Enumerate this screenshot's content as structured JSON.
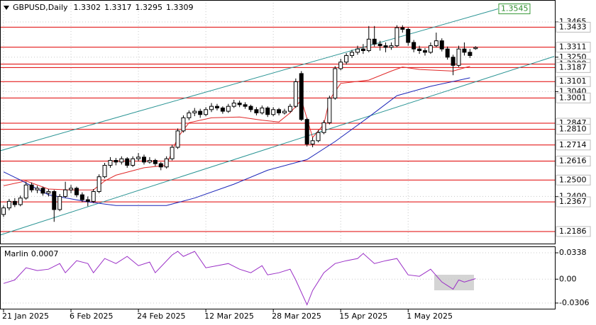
{
  "chart_data": {
    "type": "candlestick",
    "symbol": "GBPUSD,Daily",
    "header_ohlc": [
      1.3302,
      1.3317,
      1.3295,
      1.3309
    ],
    "ylim": [
      1.2108,
      1.3599
    ],
    "yticks": [
      1.3465,
      {
        "value": 1.325,
        "label": "1.3250"
      },
      {
        "value": 1.304,
        "label": "1.3040"
      },
      {
        "value": 1.24,
        "label": "1.2400"
      }
    ],
    "levels": [
      1.3433,
      1.3311,
      1.3208,
      1.3187,
      1.3101,
      1.3001,
      1.2847,
      {
        "value": 1.281,
        "label": "1.2810"
      },
      1.2714,
      1.2616,
      {
        "value": 1.25,
        "label": "1.2500"
      },
      1.2367,
      1.2186
    ],
    "level_color": "#e00000",
    "xticks": [
      {
        "value": 0,
        "label": "21 Jan 2025"
      },
      {
        "value": 12,
        "label": "6 Feb 2025"
      },
      {
        "value": 24,
        "label": "24 Feb 2025"
      },
      {
        "value": 36,
        "label": "12 Mar 2025"
      },
      {
        "value": 48,
        "label": "28 Mar 2025"
      },
      {
        "value": 60,
        "label": "15 Apr 2025"
      },
      {
        "value": 72,
        "label": "1 May 2025"
      }
    ],
    "candles": [
      [
        1.229,
        1.2345,
        1.2275,
        1.233
      ],
      [
        1.233,
        1.2385,
        1.2315,
        1.237
      ],
      [
        1.237,
        1.239,
        1.2335,
        1.235
      ],
      [
        1.235,
        1.2405,
        1.234,
        1.239
      ],
      [
        1.239,
        1.249,
        1.238,
        1.247
      ],
      [
        1.247,
        1.2485,
        1.2425,
        1.244
      ],
      [
        1.244,
        1.2465,
        1.242,
        1.245
      ],
      [
        1.245,
        1.246,
        1.2405,
        1.242
      ],
      [
        1.242,
        1.2445,
        1.24,
        1.243
      ],
      [
        1.243,
        1.244,
        1.2245,
        1.232
      ],
      [
        1.232,
        1.2415,
        1.231,
        1.24
      ],
      [
        1.24,
        1.249,
        1.239,
        1.244
      ],
      [
        1.244,
        1.247,
        1.242,
        1.245
      ],
      [
        1.245,
        1.246,
        1.2395,
        1.241
      ],
      [
        1.241,
        1.2425,
        1.2365,
        1.238
      ],
      [
        1.238,
        1.24,
        1.234,
        1.237
      ],
      [
        1.237,
        1.2445,
        1.236,
        1.243
      ],
      [
        1.243,
        1.2535,
        1.242,
        1.252
      ],
      [
        1.252,
        1.2605,
        1.251,
        1.259
      ],
      [
        1.259,
        1.264,
        1.2575,
        1.262
      ],
      [
        1.262,
        1.2635,
        1.259,
        1.261
      ],
      [
        1.261,
        1.2645,
        1.2595,
        1.263
      ],
      [
        1.263,
        1.264,
        1.2575,
        1.259
      ],
      [
        1.259,
        1.2645,
        1.258,
        1.263
      ],
      [
        1.263,
        1.2665,
        1.2615,
        1.264
      ],
      [
        1.264,
        1.2655,
        1.2595,
        1.261
      ],
      [
        1.261,
        1.264,
        1.26,
        1.262
      ],
      [
        1.262,
        1.263,
        1.2585,
        1.26
      ],
      [
        1.26,
        1.261,
        1.256,
        1.258
      ],
      [
        1.258,
        1.2645,
        1.257,
        1.263
      ],
      [
        1.263,
        1.2715,
        1.262,
        1.27
      ],
      [
        1.27,
        1.2815,
        1.269,
        1.28
      ],
      [
        1.28,
        1.2895,
        1.279,
        1.288
      ],
      [
        1.288,
        1.2925,
        1.2865,
        1.291
      ],
      [
        1.291,
        1.294,
        1.289,
        1.292
      ],
      [
        1.292,
        1.2935,
        1.288,
        1.29
      ],
      [
        1.29,
        1.2945,
        1.289,
        1.293
      ],
      [
        1.293,
        1.297,
        1.2915,
        1.295
      ],
      [
        1.295,
        1.2965,
        1.2925,
        1.294
      ],
      [
        1.294,
        1.295,
        1.2905,
        1.292
      ],
      [
        1.292,
        1.2965,
        1.291,
        1.295
      ],
      [
        1.295,
        1.299,
        1.294,
        1.297
      ],
      [
        1.297,
        1.2985,
        1.2945,
        1.296
      ],
      [
        1.296,
        1.2975,
        1.2935,
        1.295
      ],
      [
        1.295,
        1.296,
        1.2915,
        1.293
      ],
      [
        1.293,
        1.2945,
        1.2895,
        1.291
      ],
      [
        1.291,
        1.2955,
        1.29,
        1.294
      ],
      [
        1.294,
        1.295,
        1.2885,
        1.29
      ],
      [
        1.29,
        1.2945,
        1.289,
        1.293
      ],
      [
        1.293,
        1.294,
        1.2895,
        1.291
      ],
      [
        1.291,
        1.2935,
        1.29,
        1.292
      ],
      [
        1.292,
        1.2965,
        1.291,
        1.295
      ],
      [
        1.295,
        1.312,
        1.294,
        1.31
      ],
      [
        1.315,
        1.3165,
        1.286,
        1.287
      ],
      [
        1.287,
        1.288,
        1.2705,
        1.272
      ],
      [
        1.272,
        1.276,
        1.27,
        1.274
      ],
      [
        1.274,
        1.2805,
        1.273,
        1.279
      ],
      [
        1.279,
        1.2865,
        1.278,
        1.285
      ],
      [
        1.285,
        1.3015,
        1.284,
        1.3
      ],
      [
        1.3,
        1.3195,
        1.299,
        1.318
      ],
      [
        1.318,
        1.324,
        1.317,
        1.322
      ],
      [
        1.322,
        1.3275,
        1.3205,
        1.326
      ],
      [
        1.326,
        1.3295,
        1.3245,
        1.328
      ],
      [
        1.328,
        1.332,
        1.3265,
        1.33
      ],
      [
        1.33,
        1.333,
        1.327,
        1.329
      ],
      [
        1.329,
        1.344,
        1.328,
        1.336
      ],
      [
        1.336,
        1.344,
        1.3315,
        1.333
      ],
      [
        1.333,
        1.335,
        1.329,
        1.332
      ],
      [
        1.332,
        1.334,
        1.328,
        1.331
      ],
      [
        1.331,
        1.334,
        1.3295,
        1.332
      ],
      [
        1.332,
        1.3445,
        1.331,
        1.343
      ],
      [
        1.343,
        1.3445,
        1.34,
        1.342
      ],
      [
        1.342,
        1.343,
        1.332,
        1.334
      ],
      [
        1.334,
        1.3355,
        1.328,
        1.33
      ],
      [
        1.33,
        1.332,
        1.327,
        1.329
      ],
      [
        1.329,
        1.3305,
        1.326,
        1.328
      ],
      [
        1.328,
        1.334,
        1.327,
        1.332
      ],
      [
        1.332,
        1.34,
        1.331,
        1.335
      ],
      [
        1.335,
        1.3365,
        1.3285,
        1.33
      ],
      [
        1.33,
        1.3315,
        1.3235,
        1.325
      ],
      [
        1.325,
        1.3265,
        1.314,
        1.32
      ],
      [
        1.32,
        1.332,
        1.319,
        1.33
      ],
      [
        1.33,
        1.334,
        1.326,
        1.328
      ],
      [
        1.328,
        1.33,
        1.3245,
        1.326
      ],
      [
        1.3302,
        1.3317,
        1.3295,
        1.3309
      ]
    ],
    "ma_lines": [
      {
        "color": "#e02828",
        "points": [
          [
            0,
            1.2465
          ],
          [
            4,
            1.2495
          ],
          [
            8,
            1.2445
          ],
          [
            12,
            1.244
          ],
          [
            16,
            1.244
          ],
          [
            18,
            1.2495
          ],
          [
            20,
            1.253
          ],
          [
            25,
            1.2575
          ],
          [
            29,
            1.259
          ],
          [
            31,
            1.276
          ],
          [
            33,
            1.285
          ],
          [
            37,
            1.288
          ],
          [
            42,
            1.2885
          ],
          [
            46,
            1.2865
          ],
          [
            49,
            1.2855
          ],
          [
            51,
            1.291
          ],
          [
            53,
            1.299
          ],
          [
            55,
            1.276
          ],
          [
            57,
            1.284
          ],
          [
            58,
            1.299
          ],
          [
            60,
            1.309
          ],
          [
            65,
            1.311
          ],
          [
            69,
            1.3165
          ],
          [
            71,
            1.319
          ],
          [
            74,
            1.3175
          ],
          [
            77,
            1.317
          ],
          [
            80,
            1.3165
          ],
          [
            83,
            1.3195
          ]
        ]
      },
      {
        "color": "#1a24b8",
        "points": [
          [
            0,
            1.255
          ],
          [
            3,
            1.25
          ],
          [
            8,
            1.241
          ],
          [
            15,
            1.2367
          ],
          [
            20,
            1.2345
          ],
          [
            29,
            1.2345
          ],
          [
            34,
            1.239
          ],
          [
            41,
            1.2475
          ],
          [
            47,
            1.256
          ],
          [
            54,
            1.2625
          ],
          [
            59,
            1.2735
          ],
          [
            65,
            1.2885
          ],
          [
            70,
            1.3015
          ],
          [
            76,
            1.3072
          ],
          [
            83,
            1.3124
          ]
        ]
      }
    ],
    "trend_lines": [
      {
        "color": "#2a9494",
        "points": [
          [
            -1,
            1.2675
          ],
          [
            88,
            1.3545
          ]
        ]
      },
      {
        "color": "#2a9494",
        "points": [
          [
            -1,
            1.216
          ],
          [
            98,
            1.3255
          ]
        ]
      }
    ],
    "indicator": {
      "name": "Marlin",
      "value": 0.0007,
      "color": "#9a2fc6",
      "ylim": [
        -0.0388,
        0.042
      ],
      "yticks": [
        0.0338,
        {
          "value": 0,
          "label": "0.00"
        },
        -0.0306
      ],
      "points": [
        [
          0,
          -0.0055
        ],
        [
          2,
          -0.001
        ],
        [
          4,
          0.0146
        ],
        [
          6,
          0.011
        ],
        [
          8,
          0.0128
        ],
        [
          10,
          0.02
        ],
        [
          11,
          0.0082
        ],
        [
          13,
          0.0237
        ],
        [
          15,
          0.02
        ],
        [
          16,
          0.0082
        ],
        [
          18,
          0.0265
        ],
        [
          20,
          0.02
        ],
        [
          22,
          0.0292
        ],
        [
          24,
          0.0173
        ],
        [
          26,
          0.0219
        ],
        [
          27,
          0.0082
        ],
        [
          30,
          0.031
        ],
        [
          31,
          0.0356
        ],
        [
          32,
          0.0292
        ],
        [
          34,
          0.0356
        ],
        [
          36,
          0.0146
        ],
        [
          38,
          0.0173
        ],
        [
          40,
          0.02
        ],
        [
          42,
          0.0128
        ],
        [
          44,
          0.0082
        ],
        [
          46,
          0.0173
        ],
        [
          47,
          0.0055
        ],
        [
          49,
          0.0082
        ],
        [
          51,
          0.0128
        ],
        [
          52,
          -0.001
        ],
        [
          54,
          -0.0329
        ],
        [
          55,
          -0.0146
        ],
        [
          57,
          0.0082
        ],
        [
          59,
          0.02
        ],
        [
          61,
          0.0237
        ],
        [
          63,
          0.0265
        ],
        [
          64,
          0.0329
        ],
        [
          66,
          0.02
        ],
        [
          68,
          0.0237
        ],
        [
          70,
          0.0265
        ],
        [
          72,
          0.0055
        ],
        [
          74,
          0.0037
        ],
        [
          76,
          0.0128
        ],
        [
          78,
          -0.0037
        ],
        [
          80,
          -0.0128
        ],
        [
          81,
          -0.001
        ],
        [
          82,
          -0.0037
        ],
        [
          84,
          0.0007
        ]
      ]
    }
  }
}
